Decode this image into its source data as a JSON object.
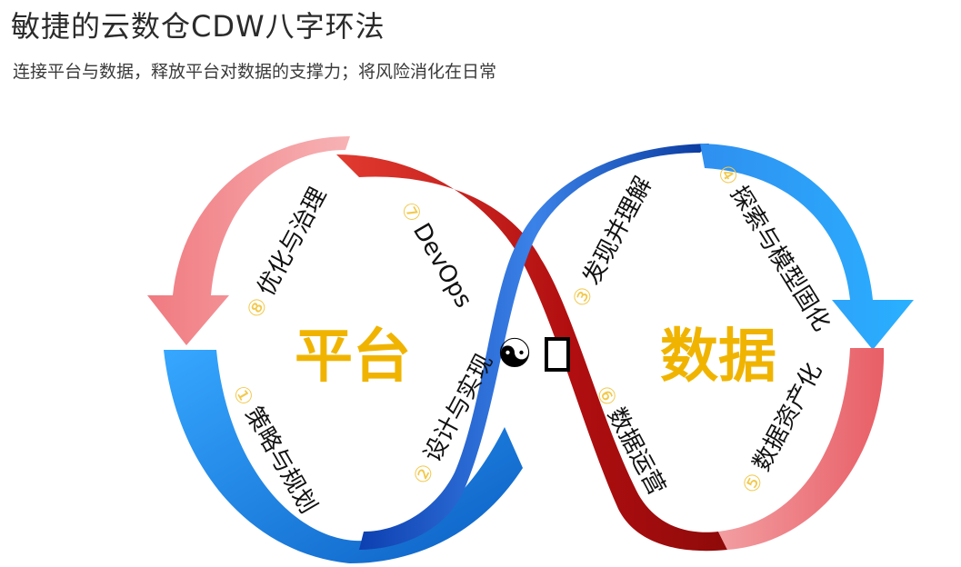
{
  "title": "敏捷的云数仓CDW八字环法",
  "subtitle": "连接平台与数据，释放平台对数据的支撑力；将风险消化在日常",
  "loops": {
    "left_label": "平台",
    "right_label": "数据"
  },
  "center_symbol": "☯",
  "center_box": "",
  "steps": [
    {
      "num": "①",
      "text": "策略与规划"
    },
    {
      "num": "②",
      "text": "设计与实现"
    },
    {
      "num": "③",
      "text": "发现并理解"
    },
    {
      "num": "④",
      "text": "探索与模型固化"
    },
    {
      "num": "⑤",
      "text": "数据资产化"
    },
    {
      "num": "⑥",
      "text": "数据运营"
    },
    {
      "num": "⑦",
      "text": "DevOps"
    },
    {
      "num": "⑧",
      "text": "优化与治理"
    }
  ],
  "colors": {
    "label": "#f0b400",
    "step_num": "#f2c94c",
    "blue": "#1f7fe0",
    "red": "#d72a2a",
    "pink": "#ef7b80"
  }
}
